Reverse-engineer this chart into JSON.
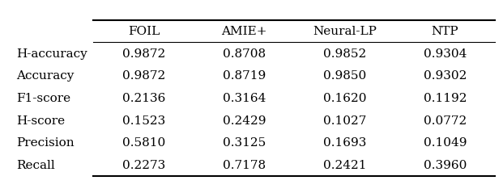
{
  "columns": [
    "",
    "FOIL",
    "AMIE+",
    "Neural-LP",
    "NTP"
  ],
  "rows": [
    [
      "H-accuracy",
      "0.9872",
      "0.8708",
      "0.9852",
      "0.9304"
    ],
    [
      "Accuracy",
      "0.9872",
      "0.8719",
      "0.9850",
      "0.9302"
    ],
    [
      "F1-score",
      "0.2136",
      "0.3164",
      "0.1620",
      "0.1192"
    ],
    [
      "H-score",
      "0.1523",
      "0.2429",
      "0.1027",
      "0.0772"
    ],
    [
      "Precision",
      "0.5810",
      "0.3125",
      "0.1693",
      "0.1049"
    ],
    [
      "Recall",
      "0.2273",
      "0.7178",
      "0.2421",
      "0.3960"
    ]
  ],
  "background_color": "#ffffff",
  "text_color": "#000000",
  "font_size": 11,
  "header_font_size": 11,
  "lw_thick": 1.5,
  "lw_thin": 0.8
}
